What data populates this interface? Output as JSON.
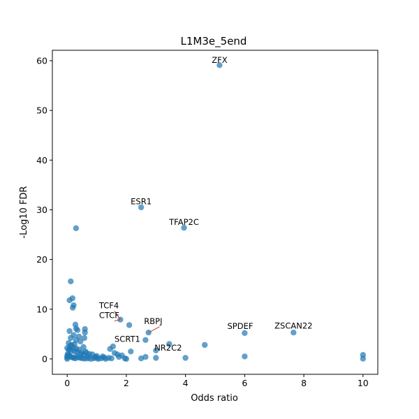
{
  "chart_data": {
    "type": "scatter",
    "title": "L1M3e_5end",
    "xlabel": "Odds ratio",
    "ylabel": "-Log10 FDR",
    "xlim": [
      -0.5,
      10.5
    ],
    "ylim": [
      -3.1,
      62.1
    ],
    "xticks": [
      0,
      2,
      4,
      6,
      8,
      10
    ],
    "yticks": [
      0,
      10,
      20,
      30,
      40,
      50,
      60
    ],
    "grid": false,
    "color": "#1f77b4",
    "points": [
      {
        "x": 5.15,
        "y": 59.1
      },
      {
        "x": 2.5,
        "y": 30.5
      },
      {
        "x": 3.95,
        "y": 26.4
      },
      {
        "x": 0.3,
        "y": 26.3
      },
      {
        "x": 0.12,
        "y": 15.6
      },
      {
        "x": 0.18,
        "y": 12.2
      },
      {
        "x": 0.08,
        "y": 11.8
      },
      {
        "x": 0.22,
        "y": 10.8
      },
      {
        "x": 0.19,
        "y": 10.3
      },
      {
        "x": 1.8,
        "y": 7.9
      },
      {
        "x": 2.1,
        "y": 6.8
      },
      {
        "x": 2.75,
        "y": 5.3
      },
      {
        "x": 6.0,
        "y": 5.2
      },
      {
        "x": 7.65,
        "y": 5.3
      },
      {
        "x": 0.28,
        "y": 6.9
      },
      {
        "x": 0.3,
        "y": 6.1
      },
      {
        "x": 0.35,
        "y": 5.8
      },
      {
        "x": 0.08,
        "y": 5.6
      },
      {
        "x": 0.6,
        "y": 6.0
      },
      {
        "x": 0.6,
        "y": 5.3
      },
      {
        "x": 0.22,
        "y": 4.8
      },
      {
        "x": 0.4,
        "y": 4.5
      },
      {
        "x": 0.12,
        "y": 4.2
      },
      {
        "x": 0.58,
        "y": 4.2
      },
      {
        "x": 0.3,
        "y": 3.8
      },
      {
        "x": 0.05,
        "y": 3.2
      },
      {
        "x": 0.45,
        "y": 3.5
      },
      {
        "x": 2.65,
        "y": 3.8
      },
      {
        "x": 3.45,
        "y": 3.0
      },
      {
        "x": 4.65,
        "y": 2.8
      },
      {
        "x": 1.55,
        "y": 2.5
      },
      {
        "x": 1.45,
        "y": 2.0
      },
      {
        "x": 3.0,
        "y": 1.7
      },
      {
        "x": 2.15,
        "y": 1.5
      },
      {
        "x": 0.55,
        "y": 2.4
      },
      {
        "x": 0.1,
        "y": 2.6
      },
      {
        "x": 0.2,
        "y": 2.3
      },
      {
        "x": 0.3,
        "y": 2.1
      },
      {
        "x": 0.4,
        "y": 1.9
      },
      {
        "x": 0.05,
        "y": 1.8
      },
      {
        "x": 0.15,
        "y": 1.6
      },
      {
        "x": 0.25,
        "y": 1.5
      },
      {
        "x": 0.35,
        "y": 1.4
      },
      {
        "x": 0.5,
        "y": 1.3
      },
      {
        "x": 0.65,
        "y": 1.2
      },
      {
        "x": 0.75,
        "y": 1.0
      },
      {
        "x": 0.85,
        "y": 0.9
      },
      {
        "x": 1.0,
        "y": 0.6
      },
      {
        "x": 1.2,
        "y": 0.5
      },
      {
        "x": 1.6,
        "y": 1.2
      },
      {
        "x": 1.7,
        "y": 0.9
      },
      {
        "x": 1.85,
        "y": 0.7
      },
      {
        "x": 0.02,
        "y": 1.0
      },
      {
        "x": 0.05,
        "y": 0.8
      },
      {
        "x": 0.08,
        "y": 0.6
      },
      {
        "x": 0.12,
        "y": 0.4
      },
      {
        "x": 0.18,
        "y": 0.3
      },
      {
        "x": 0.22,
        "y": 0.2
      },
      {
        "x": 0.28,
        "y": 0.1
      },
      {
        "x": 0.32,
        "y": 0.5
      },
      {
        "x": 0.38,
        "y": 0.3
      },
      {
        "x": 0.45,
        "y": 0.2
      },
      {
        "x": 0.52,
        "y": 0.1
      },
      {
        "x": 0.6,
        "y": 0.05
      },
      {
        "x": 0.7,
        "y": 0.1
      },
      {
        "x": 0.8,
        "y": 0.0
      },
      {
        "x": 0.9,
        "y": 0.1
      },
      {
        "x": 1.05,
        "y": 0.0
      },
      {
        "x": 1.15,
        "y": 0.1
      },
      {
        "x": 1.3,
        "y": 0.0
      },
      {
        "x": 1.4,
        "y": 0.2
      },
      {
        "x": 1.5,
        "y": 0.1
      },
      {
        "x": 1.95,
        "y": 0.1
      },
      {
        "x": 2.0,
        "y": 0.0
      },
      {
        "x": 2.5,
        "y": 0.1
      },
      {
        "x": 2.65,
        "y": 0.4
      },
      {
        "x": 3.0,
        "y": 0.2
      },
      {
        "x": 4.0,
        "y": 0.2
      },
      {
        "x": 6.0,
        "y": 0.5
      },
      {
        "x": 10.0,
        "y": 0.8
      },
      {
        "x": 10.0,
        "y": 0.05
      },
      {
        "x": 0.0,
        "y": 0.0
      },
      {
        "x": 0.0,
        "y": 0.3
      },
      {
        "x": 0.0,
        "y": 0.6
      },
      {
        "x": 0.0,
        "y": 2.2
      },
      {
        "x": 0.1,
        "y": 2.0
      },
      {
        "x": 0.15,
        "y": 2.8
      },
      {
        "x": 0.25,
        "y": 3.0
      },
      {
        "x": 0.7,
        "y": 0.5
      },
      {
        "x": 0.55,
        "y": 0.8
      },
      {
        "x": 0.45,
        "y": 1.0
      },
      {
        "x": 1.25,
        "y": 0.3
      },
      {
        "x": 1.75,
        "y": 0.4
      },
      {
        "x": 1.0,
        "y": 0.2
      },
      {
        "x": 0.95,
        "y": 0.4
      },
      {
        "x": 0.62,
        "y": 1.5
      }
    ],
    "annotations": [
      {
        "text": "ZFX",
        "x": 5.15,
        "y": 59.1,
        "tx": 5.15,
        "ty": 59.6,
        "anchor": "middle",
        "leader": false
      },
      {
        "text": "ESR1",
        "x": 2.5,
        "y": 30.5,
        "tx": 2.5,
        "ty": 31.1,
        "anchor": "middle",
        "leader": false
      },
      {
        "text": "TFAP2C",
        "x": 3.95,
        "y": 26.4,
        "tx": 3.95,
        "ty": 27.0,
        "anchor": "middle",
        "leader": false
      },
      {
        "text": "TCF4",
        "x": 1.8,
        "y": 7.9,
        "tx": 1.08,
        "ty": 10.2,
        "anchor": "start",
        "leader": true
      },
      {
        "text": "CTCF",
        "x": 1.8,
        "y": 7.9,
        "tx": 1.08,
        "ty": 8.2,
        "anchor": "start",
        "leader": true
      },
      {
        "text": "RBPJ",
        "x": 2.75,
        "y": 5.3,
        "tx": 2.6,
        "ty": 7.0,
        "anchor": "start",
        "leader": true
      },
      {
        "text": "SPDEF",
        "x": 6.0,
        "y": 5.2,
        "tx": 5.85,
        "ty": 6.0,
        "anchor": "middle",
        "leader": false
      },
      {
        "text": "ZSCAN22",
        "x": 7.65,
        "y": 5.3,
        "tx": 7.65,
        "ty": 6.1,
        "anchor": "middle",
        "leader": false
      },
      {
        "text": "SCRT1",
        "x": 1.55,
        "y": 2.5,
        "tx": 1.6,
        "ty": 3.4,
        "anchor": "start",
        "leader": false
      },
      {
        "text": "NR2C2",
        "x": 3.0,
        "y": 1.7,
        "tx": 2.95,
        "ty": 1.7,
        "anchor": "start",
        "leader": false
      }
    ]
  }
}
